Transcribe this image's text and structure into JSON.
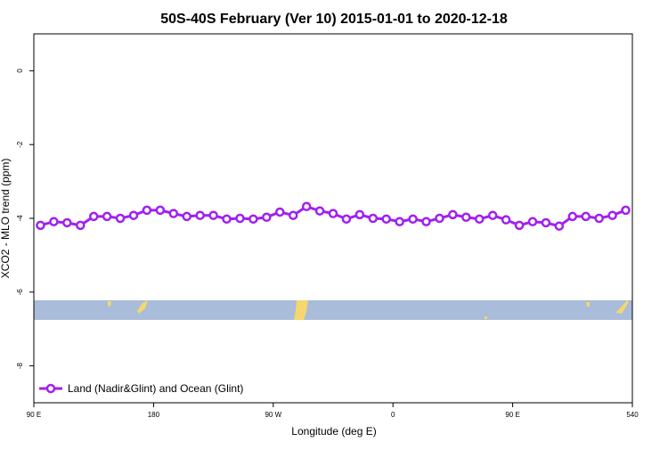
{
  "chart_data": {
    "type": "line",
    "title": "50S-40S February (Ver 10)   2015-01-01 to 2020-12-18",
    "x_label": "Longitude (deg E)",
    "y_label": "XCO2 - MLO trend (ppm)",
    "x": [
      95,
      105,
      115,
      125,
      135,
      145,
      155,
      165,
      175,
      185,
      195,
      205,
      215,
      225,
      235,
      245,
      255,
      265,
      275,
      285,
      295,
      305,
      315,
      325,
      335,
      345,
      355,
      365,
      375,
      385,
      395,
      405,
      415,
      425,
      435,
      445,
      455,
      465,
      475,
      485,
      495,
      505,
      515,
      525,
      535
    ],
    "series": [
      {
        "name": "Land (Nadir&Glint) and Ocean (Glint)",
        "color": "#a020f0",
        "values": [
          -4.19,
          -4.09,
          -4.12,
          -4.19,
          -3.95,
          -3.95,
          -4.0,
          -3.92,
          -3.78,
          -3.78,
          -3.87,
          -3.95,
          -3.92,
          -3.92,
          -4.02,
          -4.0,
          -4.02,
          -3.97,
          -3.83,
          -3.92,
          -3.68,
          -3.8,
          -3.87,
          -4.02,
          -3.9,
          -4.0,
          -4.02,
          -4.09,
          -4.02,
          -4.09,
          -4.0,
          -3.9,
          -3.97,
          -4.02,
          -3.92,
          -4.04,
          -4.19,
          -4.09,
          -4.12,
          -4.21,
          -3.95,
          -3.95,
          -4.0,
          -3.92,
          -3.78
        ]
      }
    ],
    "xlim": [
      90,
      540
    ],
    "xticks": [
      {
        "value": 90,
        "label": "90 E"
      },
      180,
      {
        "value": 270,
        "label": "90 W"
      },
      {
        "value": 360,
        "label": "0"
      },
      {
        "value": 450,
        "label": "90 E"
      },
      540
    ],
    "ylim": [
      -9,
      1
    ],
    "yticks": [
      0,
      -2,
      -4,
      -6,
      -8
    ],
    "legend": "bottom left"
  }
}
